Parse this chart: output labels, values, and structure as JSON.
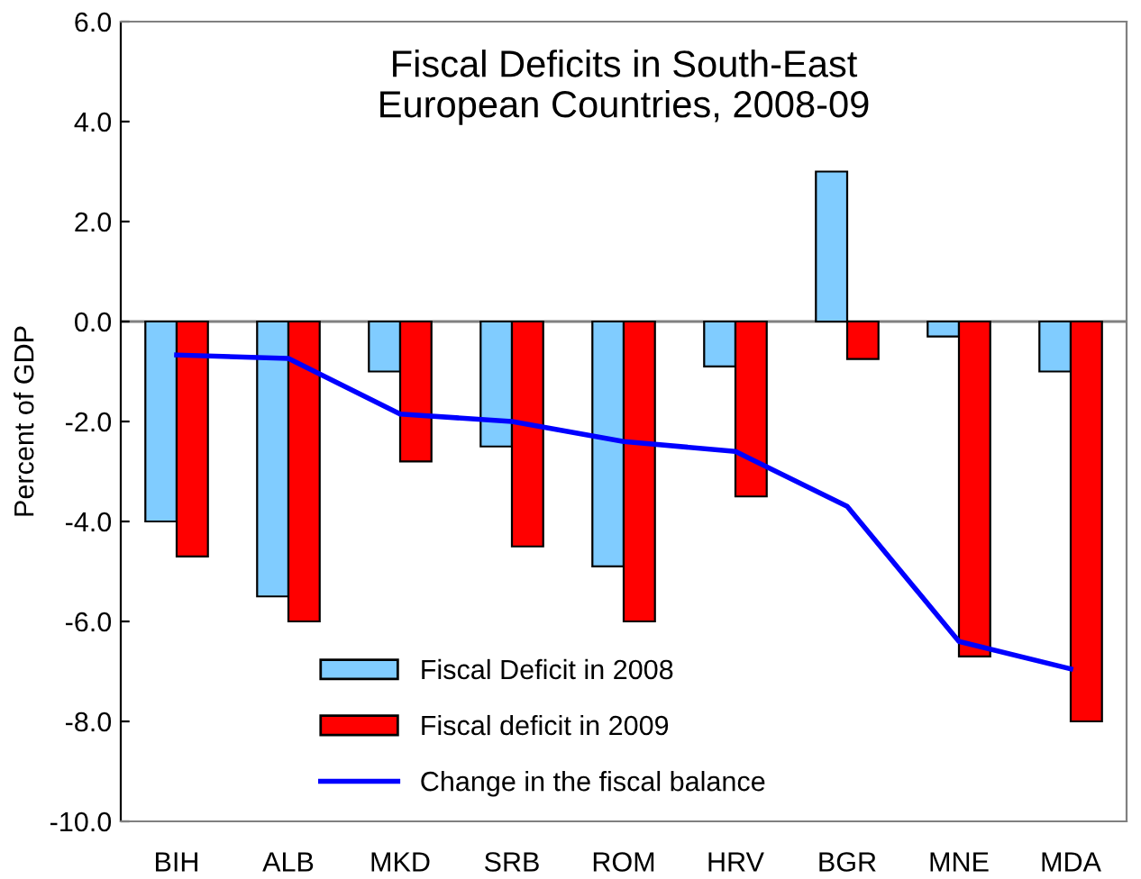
{
  "chart_data": {
    "type": "bar",
    "title": "Fiscal Deficits in South-East\nEuropean Countries, 2008-09",
    "ylabel": "Percent of GDP",
    "categories": [
      "BIH",
      "ALB",
      "MKD",
      "SRB",
      "ROM",
      "HRV",
      "BGR",
      "MNE",
      "MDA"
    ],
    "series": [
      {
        "name": "Fiscal Deficit in 2008",
        "color": "#80ccff",
        "values": [
          -4.0,
          -5.5,
          -1.0,
          -2.5,
          -4.9,
          -0.9,
          3.0,
          -0.3,
          -1.0
        ]
      },
      {
        "name": "Fiscal deficit in 2009",
        "color": "#ff0000",
        "values": [
          -4.7,
          -6.0,
          -2.8,
          -4.5,
          -6.0,
          -3.5,
          -0.75,
          -6.7,
          -8.0
        ]
      },
      {
        "name": "Change in the fiscal balance",
        "type": "line",
        "color": "#0000ff",
        "values": [
          -0.67,
          -0.74,
          -1.85,
          -2.0,
          -2.4,
          -2.6,
          -3.7,
          -6.4,
          -6.95
        ]
      }
    ],
    "ylim": [
      -10,
      6
    ],
    "yticks": [
      {
        "value": -10,
        "label": "-10.0"
      },
      {
        "value": -8,
        "label": "-8.0"
      },
      {
        "value": -6,
        "label": "-6.0"
      },
      {
        "value": -4,
        "label": "-4.0"
      },
      {
        "value": -2,
        "label": "-2.0"
      },
      {
        "value": 0,
        "label": "0.0"
      },
      {
        "value": 2,
        "label": "2.0"
      },
      {
        "value": 4,
        "label": "4.0"
      },
      {
        "value": 6,
        "label": "6.0"
      }
    ],
    "ref_lines": [
      {
        "axis": "y",
        "value": 0,
        "label": null,
        "color": "#808080"
      }
    ],
    "legend": "bottom"
  }
}
